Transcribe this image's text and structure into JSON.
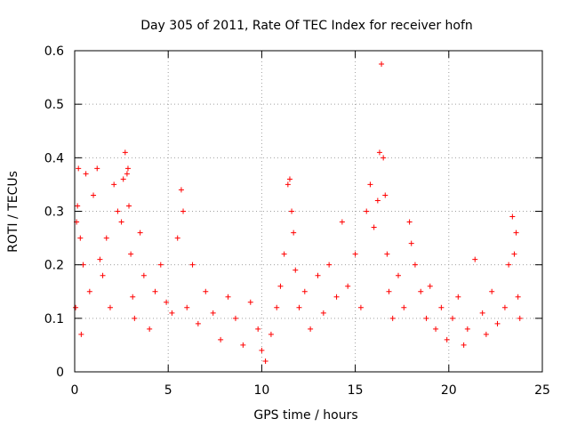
{
  "chart_data": {
    "type": "scatter",
    "title": "Day 305 of 2011, Rate Of TEC Index for receiver hofn",
    "xlabel": "GPS time / hours",
    "ylabel": "ROTI / TECUs",
    "xlim": [
      0,
      25
    ],
    "ylim": [
      0,
      0.6
    ],
    "x_ticks": [
      "0",
      "5",
      "10",
      "15",
      "20",
      "25"
    ],
    "y_ticks": [
      "0",
      "0.1",
      "0.2",
      "0.3",
      "0.4",
      "0.5",
      "0.6"
    ],
    "grid": true,
    "marker": "+",
    "marker_color": "#ff0000",
    "series": [
      {
        "x": [
          0.05,
          0.1,
          0.15,
          0.2,
          0.3,
          0.35,
          0.45,
          0.6,
          0.8,
          1.0,
          1.2,
          1.35,
          1.5,
          1.7,
          1.9,
          2.1,
          2.3,
          2.5,
          2.6,
          2.7,
          2.8,
          2.85,
          2.9,
          3.0,
          3.1,
          3.2,
          3.5,
          3.7,
          4.0,
          4.3,
          4.6,
          4.9,
          5.2,
          5.5,
          5.7,
          5.8,
          6.0,
          6.3,
          6.6,
          7.0,
          7.4,
          7.8,
          8.2,
          8.6,
          9.0,
          9.4,
          9.8,
          10.0,
          10.2,
          10.5,
          10.8,
          11.0,
          11.2,
          11.4,
          11.5,
          11.6,
          11.7,
          11.8,
          12.0,
          12.3,
          12.6,
          13.0,
          13.3,
          13.6,
          14.0,
          14.3,
          14.6,
          15.0,
          15.3,
          15.6,
          15.8,
          16.0,
          16.2,
          16.3,
          16.4,
          16.5,
          16.6,
          16.7,
          16.8,
          17.0,
          17.3,
          17.6,
          17.9,
          18.0,
          18.2,
          18.5,
          18.8,
          19.0,
          19.3,
          19.6,
          19.9,
          20.2,
          20.5,
          20.8,
          21.0,
          21.4,
          21.8,
          22.0,
          22.3,
          22.6,
          23.0,
          23.2,
          23.4,
          23.5,
          23.6,
          23.7,
          23.8
        ],
        "y": [
          0.12,
          0.28,
          0.31,
          0.38,
          0.25,
          0.07,
          0.2,
          0.37,
          0.15,
          0.33,
          0.38,
          0.21,
          0.18,
          0.25,
          0.12,
          0.35,
          0.3,
          0.28,
          0.36,
          0.41,
          0.37,
          0.38,
          0.31,
          0.22,
          0.14,
          0.1,
          0.26,
          0.18,
          0.08,
          0.15,
          0.2,
          0.13,
          0.11,
          0.25,
          0.34,
          0.3,
          0.12,
          0.2,
          0.09,
          0.15,
          0.11,
          0.06,
          0.14,
          0.1,
          0.05,
          0.13,
          0.08,
          0.04,
          0.02,
          0.07,
          0.12,
          0.16,
          0.22,
          0.35,
          0.36,
          0.3,
          0.26,
          0.19,
          0.12,
          0.15,
          0.08,
          0.18,
          0.11,
          0.2,
          0.14,
          0.28,
          0.16,
          0.22,
          0.12,
          0.3,
          0.35,
          0.27,
          0.32,
          0.41,
          0.575,
          0.4,
          0.33,
          0.22,
          0.15,
          0.1,
          0.18,
          0.12,
          0.28,
          0.24,
          0.2,
          0.15,
          0.1,
          0.16,
          0.08,
          0.12,
          0.06,
          0.1,
          0.14,
          0.05,
          0.08,
          0.21,
          0.11,
          0.07,
          0.15,
          0.09,
          0.12,
          0.2,
          0.29,
          0.22,
          0.26,
          0.14,
          0.1
        ]
      }
    ]
  }
}
